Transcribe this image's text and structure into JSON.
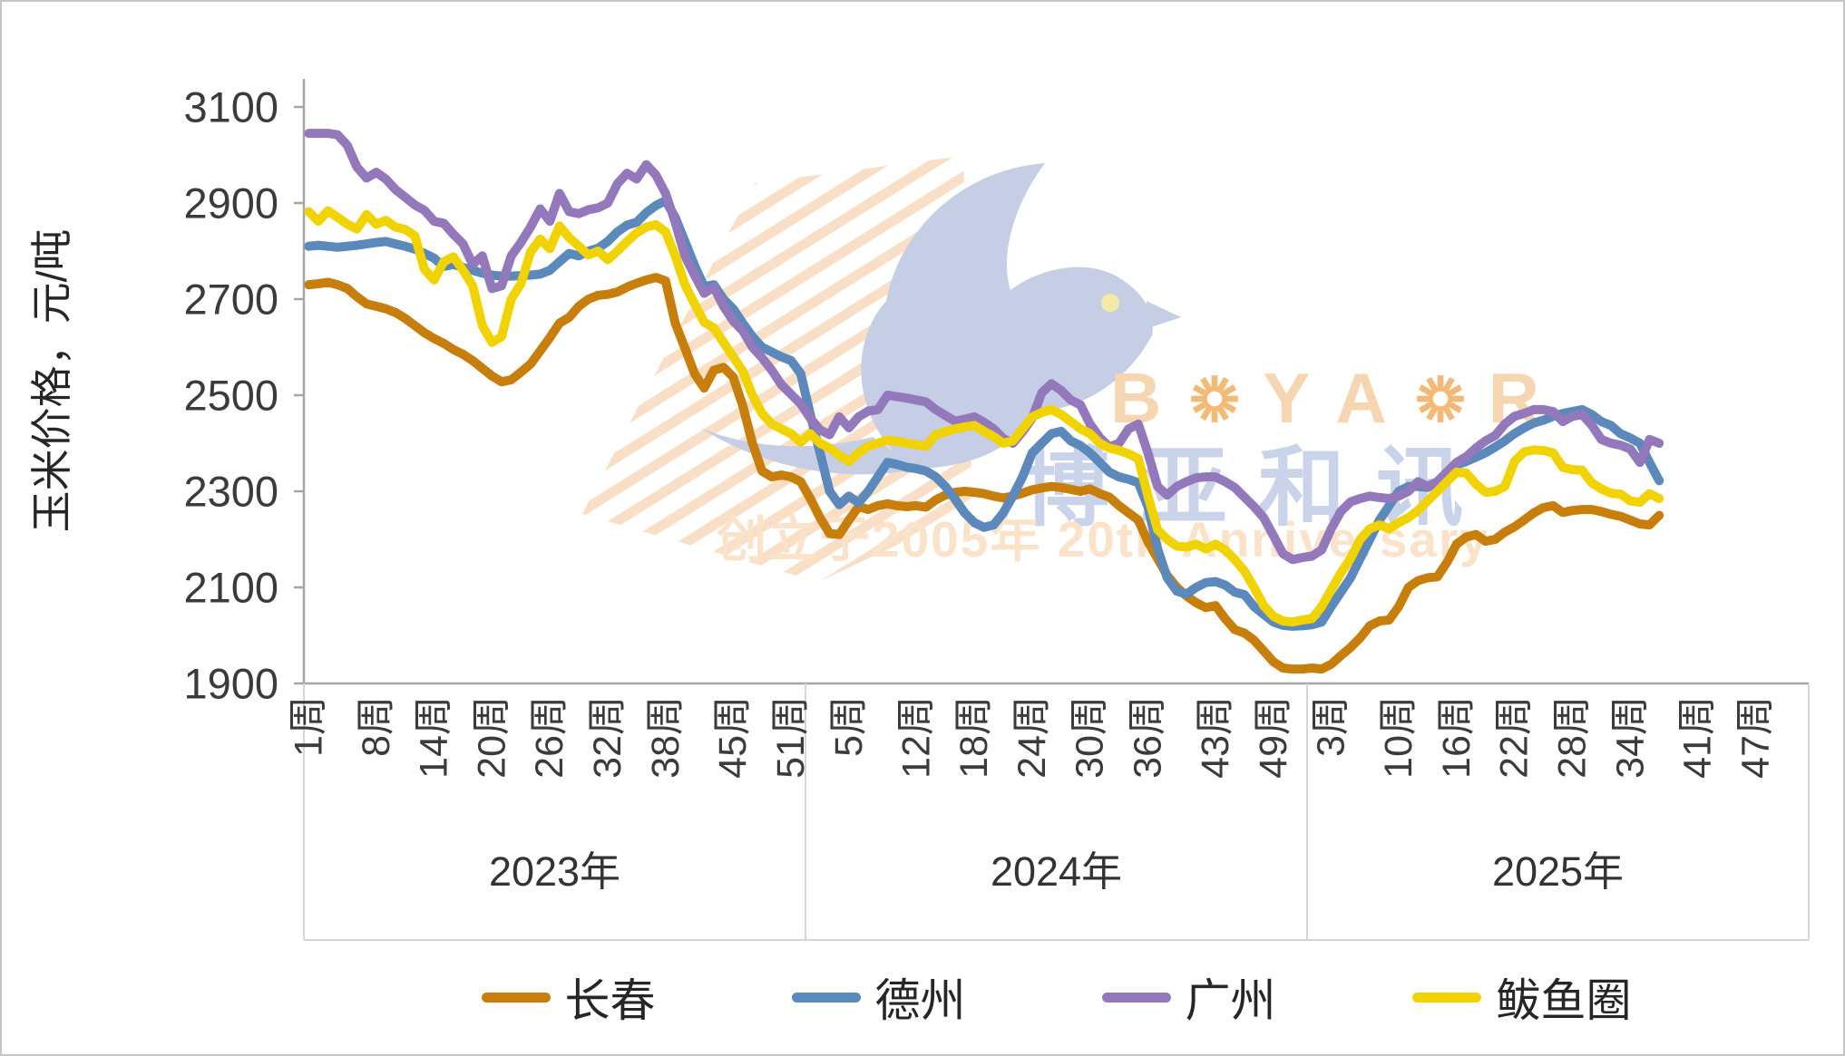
{
  "watermark": {
    "brand_en": "BOYAR",
    "brand_cn": "博亚和讯",
    "tagline": "创立于2005年 20th Anniversary"
  },
  "chart_data": {
    "type": "line",
    "title": "",
    "xlabel": "",
    "ylabel": "玉米价格，元/吨",
    "ylim": [
      1900,
      3100
    ],
    "y_ticks": [
      3100,
      2900,
      2700,
      2500,
      2300,
      2100,
      1900
    ],
    "grid": false,
    "legend_position": "bottom",
    "x_axis": {
      "unit": "周",
      "years": [
        {
          "label": "2023年",
          "weeks": 52,
          "ticks": [
            {
              "week": 1,
              "label": "1周"
            },
            {
              "week": 8,
              "label": "8周"
            },
            {
              "week": 14,
              "label": "14周"
            },
            {
              "week": 20,
              "label": "20周"
            },
            {
              "week": 26,
              "label": "26周"
            },
            {
              "week": 32,
              "label": "32周"
            },
            {
              "week": 38,
              "label": "38周"
            },
            {
              "week": 45,
              "label": "45周"
            },
            {
              "week": 51,
              "label": "51周"
            }
          ]
        },
        {
          "label": "2024年",
          "weeks": 52,
          "ticks": [
            {
              "week": 5,
              "label": "5周"
            },
            {
              "week": 12,
              "label": "12周"
            },
            {
              "week": 18,
              "label": "18周"
            },
            {
              "week": 24,
              "label": "24周"
            },
            {
              "week": 30,
              "label": "30周"
            },
            {
              "week": 36,
              "label": "36周"
            },
            {
              "week": 43,
              "label": "43周"
            },
            {
              "week": 49,
              "label": "49周"
            }
          ]
        },
        {
          "label": "2025年",
          "weeks": 52,
          "ticks": [
            {
              "week": 3,
              "label": "3周"
            },
            {
              "week": 10,
              "label": "10周"
            },
            {
              "week": 16,
              "label": "16周"
            },
            {
              "week": 22,
              "label": "22周"
            },
            {
              "week": 28,
              "label": "28周"
            },
            {
              "week": 34,
              "label": "34周"
            },
            {
              "week": 41,
              "label": "41周"
            },
            {
              "week": 47,
              "label": "47周"
            }
          ]
        }
      ]
    },
    "series": [
      {
        "name": "长春",
        "color": "#C87E0A",
        "values_2023": [
          2730,
          2732,
          2735,
          2730,
          2722,
          2705,
          2690,
          2685,
          2680,
          2672,
          2660,
          2645,
          2630,
          2618,
          2608,
          2595,
          2585,
          2572,
          2556,
          2540,
          2528,
          2532,
          2548,
          2565,
          2592,
          2620,
          2650,
          2662,
          2685,
          2700,
          2708,
          2710,
          2715,
          2725,
          2733,
          2740,
          2745,
          2738,
          2650,
          2598,
          2545,
          2515,
          2552,
          2558,
          2538,
          2478,
          2400,
          2342,
          2330,
          2334,
          2330,
          2320
        ],
        "values_2024": [
          2285,
          2245,
          2212,
          2210,
          2240,
          2268,
          2262,
          2270,
          2274,
          2270,
          2268,
          2270,
          2267,
          2282,
          2292,
          2298,
          2300,
          2298,
          2295,
          2290,
          2286,
          2290,
          2296,
          2303,
          2307,
          2310,
          2308,
          2304,
          2300,
          2305,
          2295,
          2288,
          2270,
          2255,
          2240,
          2195,
          2160,
          2125,
          2100,
          2082,
          2068,
          2058,
          2062,
          2035,
          2012,
          2005,
          1990,
          1968,
          1945,
          1932,
          1930,
          1930
        ],
        "values_2025": [
          1932,
          1930,
          1940,
          1958,
          1975,
          1995,
          2020,
          2030,
          2032,
          2060,
          2100,
          2114,
          2120,
          2122,
          2152,
          2190,
          2205,
          2210,
          2196,
          2200,
          2215,
          2226,
          2240,
          2255,
          2266,
          2270,
          2256,
          2260,
          2262,
          2262,
          2258,
          2252,
          2248,
          2240,
          2232,
          2230,
          2250
        ]
      },
      {
        "name": "德州",
        "color": "#5C89BB",
        "values_2023": [
          2810,
          2812,
          2810,
          2808,
          2810,
          2812,
          2815,
          2818,
          2820,
          2815,
          2810,
          2804,
          2795,
          2785,
          2768,
          2772,
          2766,
          2760,
          2754,
          2750,
          2748,
          2748,
          2749,
          2750,
          2752,
          2760,
          2778,
          2795,
          2790,
          2800,
          2806,
          2820,
          2840,
          2854,
          2860,
          2880,
          2895,
          2905,
          2870,
          2820,
          2770,
          2726,
          2730,
          2700,
          2680,
          2650,
          2622,
          2600,
          2590,
          2580,
          2572,
          2545
        ],
        "values_2024": [
          2460,
          2380,
          2300,
          2272,
          2290,
          2276,
          2300,
          2330,
          2360,
          2356,
          2350,
          2347,
          2342,
          2330,
          2310,
          2284,
          2255,
          2235,
          2225,
          2230,
          2255,
          2290,
          2330,
          2380,
          2400,
          2420,
          2425,
          2405,
          2395,
          2380,
          2360,
          2340,
          2330,
          2325,
          2318,
          2268,
          2180,
          2120,
          2092,
          2086,
          2100,
          2110,
          2112,
          2105,
          2090,
          2085,
          2060,
          2044,
          2028,
          2021,
          2019,
          2020
        ],
        "values_2025": [
          2022,
          2028,
          2060,
          2090,
          2120,
          2160,
          2200,
          2240,
          2270,
          2300,
          2310,
          2310,
          2308,
          2320,
          2340,
          2355,
          2362,
          2371,
          2380,
          2392,
          2405,
          2420,
          2432,
          2442,
          2448,
          2456,
          2462,
          2466,
          2470,
          2460,
          2445,
          2437,
          2420,
          2411,
          2400,
          2360,
          2322
        ]
      },
      {
        "name": "广州",
        "color": "#9478BC",
        "values_2023": [
          3045,
          3045,
          3045,
          3042,
          3020,
          2975,
          2952,
          2964,
          2950,
          2928,
          2912,
          2896,
          2885,
          2862,
          2858,
          2835,
          2815,
          2772,
          2790,
          2722,
          2728,
          2790,
          2818,
          2850,
          2888,
          2862,
          2920,
          2882,
          2878,
          2886,
          2890,
          2900,
          2940,
          2962,
          2950,
          2980,
          2958,
          2920,
          2860,
          2790,
          2750,
          2712,
          2725,
          2685,
          2655,
          2634,
          2600,
          2578,
          2552,
          2522,
          2502,
          2482
        ],
        "values_2024": [
          2452,
          2428,
          2418,
          2455,
          2432,
          2455,
          2467,
          2470,
          2500,
          2497,
          2494,
          2490,
          2486,
          2470,
          2458,
          2446,
          2450,
          2455,
          2444,
          2430,
          2410,
          2400,
          2424,
          2452,
          2505,
          2524,
          2510,
          2490,
          2480,
          2440,
          2412,
          2392,
          2400,
          2430,
          2440,
          2380,
          2310,
          2292,
          2310,
          2320,
          2328,
          2330,
          2330,
          2320,
          2308,
          2288,
          2268,
          2245,
          2208,
          2170,
          2158,
          2162
        ],
        "values_2025": [
          2165,
          2178,
          2222,
          2258,
          2278,
          2285,
          2290,
          2287,
          2285,
          2290,
          2300,
          2320,
          2310,
          2320,
          2340,
          2360,
          2372,
          2390,
          2405,
          2416,
          2440,
          2456,
          2462,
          2470,
          2470,
          2466,
          2445,
          2456,
          2460,
          2438,
          2408,
          2400,
          2396,
          2388,
          2360,
          2408,
          2400
        ]
      },
      {
        "name": "鲅鱼圈",
        "color": "#F1D302",
        "values_2023": [
          2882,
          2862,
          2884,
          2870,
          2856,
          2846,
          2876,
          2856,
          2864,
          2850,
          2845,
          2832,
          2762,
          2740,
          2778,
          2788,
          2760,
          2728,
          2645,
          2610,
          2622,
          2700,
          2732,
          2798,
          2825,
          2805,
          2852,
          2828,
          2810,
          2792,
          2800,
          2782,
          2800,
          2820,
          2838,
          2850,
          2855,
          2840,
          2790,
          2730,
          2690,
          2652,
          2640,
          2610,
          2580,
          2550,
          2500,
          2462,
          2440,
          2430,
          2420,
          2402
        ],
        "values_2024": [
          2420,
          2400,
          2390,
          2375,
          2362,
          2380,
          2394,
          2400,
          2407,
          2404,
          2400,
          2397,
          2394,
          2418,
          2424,
          2430,
          2434,
          2437,
          2425,
          2414,
          2400,
          2405,
          2430,
          2455,
          2464,
          2470,
          2460,
          2445,
          2430,
          2420,
          2400,
          2390,
          2385,
          2378,
          2368,
          2290,
          2220,
          2200,
          2186,
          2184,
          2190,
          2180,
          2190,
          2178,
          2158,
          2134,
          2100,
          2062,
          2040,
          2030,
          2028,
          2032
        ],
        "values_2025": [
          2035,
          2060,
          2095,
          2130,
          2160,
          2200,
          2222,
          2230,
          2222,
          2235,
          2245,
          2260,
          2280,
          2300,
          2320,
          2340,
          2338,
          2315,
          2298,
          2300,
          2310,
          2362,
          2382,
          2386,
          2385,
          2380,
          2350,
          2345,
          2344,
          2318,
          2305,
          2296,
          2294,
          2280,
          2277,
          2295,
          2285
        ]
      }
    ]
  }
}
